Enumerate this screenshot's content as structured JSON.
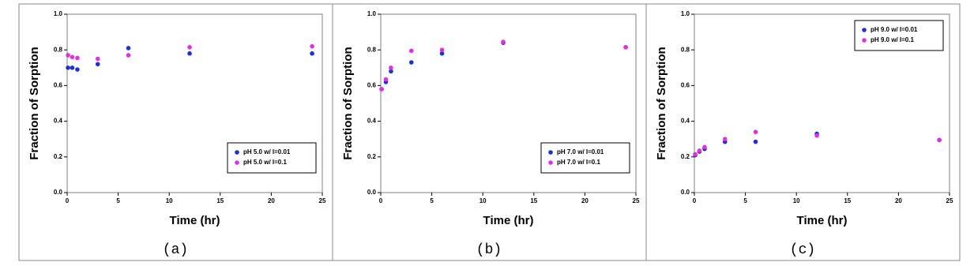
{
  "chart_data": [
    {
      "type": "scatter",
      "caption": "(a)",
      "xlabel": "Time (hr)",
      "ylabel": "Fraction of Sorption",
      "x": [
        0.083,
        0.5,
        1,
        3,
        6,
        12,
        24
      ],
      "series": [
        {
          "name": "pH 5.0 w/ I=0.01",
          "color": "#1f2fd0",
          "values": [
            0.7,
            0.7,
            0.69,
            0.72,
            0.81,
            0.78,
            0.78
          ]
        },
        {
          "name": "pH 5.0 w/ I=0.1",
          "color": "#e030e0",
          "values": [
            0.77,
            0.76,
            0.755,
            0.75,
            0.77,
            0.815,
            0.82
          ]
        }
      ],
      "xlim": [
        0,
        25
      ],
      "xticks": [
        0,
        5,
        10,
        15,
        20,
        25
      ],
      "ylim": [
        0,
        1
      ],
      "yticks": [
        {
          "value": 0,
          "label": "0.0"
        },
        {
          "value": 0.2,
          "label": "0.2"
        },
        {
          "value": 0.4,
          "label": "0.4"
        },
        {
          "value": 0.6,
          "label": "0.6"
        },
        {
          "value": 0.8,
          "label": "0.8"
        },
        {
          "value": 1,
          "label": "1.0"
        }
      ],
      "legend": "lower right"
    },
    {
      "type": "scatter",
      "caption": "(b)",
      "xlabel": "Time (hr)",
      "ylabel": "Fraction of Sorption",
      "x": [
        0.083,
        0.5,
        1,
        3,
        6,
        12,
        24
      ],
      "series": [
        {
          "name": "pH 7.0 w/ I=0.01",
          "color": "#1f2fd0",
          "values": [
            0.58,
            0.62,
            0.68,
            0.73,
            0.78,
            0.84,
            0.815
          ]
        },
        {
          "name": "pH 7.0 w/ I=0.1",
          "color": "#e030e0",
          "values": [
            0.58,
            0.635,
            0.7,
            0.795,
            0.8,
            0.845,
            0.815
          ]
        }
      ],
      "xlim": [
        0,
        25
      ],
      "xticks": [
        0,
        5,
        10,
        15,
        20,
        25
      ],
      "ylim": [
        0,
        1
      ],
      "yticks": [
        {
          "value": 0,
          "label": "0.0"
        },
        {
          "value": 0.2,
          "label": "0.2"
        },
        {
          "value": 0.4,
          "label": "0.4"
        },
        {
          "value": 0.6,
          "label": "0.6"
        },
        {
          "value": 0.8,
          "label": "0.8"
        },
        {
          "value": 1,
          "label": "1.0"
        }
      ],
      "legend": "lower right"
    },
    {
      "type": "scatter",
      "caption": "(c)",
      "xlabel": "Time (hr)",
      "ylabel": "Fraction of Sorption",
      "x": [
        0.083,
        0.5,
        1,
        3,
        6,
        12,
        24
      ],
      "series": [
        {
          "name": "pH 9.0 w/ I=0.01",
          "color": "#1f2fd0",
          "values": [
            0.21,
            0.23,
            0.245,
            0.285,
            0.285,
            0.33,
            0.295
          ]
        },
        {
          "name": "pH 9.0 w/ I=0.1",
          "color": "#e030e0",
          "values": [
            0.215,
            0.235,
            0.255,
            0.3,
            0.34,
            0.32,
            0.295
          ]
        }
      ],
      "xlim": [
        0,
        25
      ],
      "xticks": [
        0,
        5,
        10,
        15,
        20,
        25
      ],
      "ylim": [
        0,
        1
      ],
      "yticks": [
        {
          "value": 0,
          "label": "0.0"
        },
        {
          "value": 0.2,
          "label": "0.2"
        },
        {
          "value": 0.4,
          "label": "0.4"
        },
        {
          "value": 0.6,
          "label": "0.6"
        },
        {
          "value": 0.8,
          "label": "0.8"
        },
        {
          "value": 1,
          "label": "1.0"
        }
      ],
      "legend": "upper right"
    }
  ]
}
